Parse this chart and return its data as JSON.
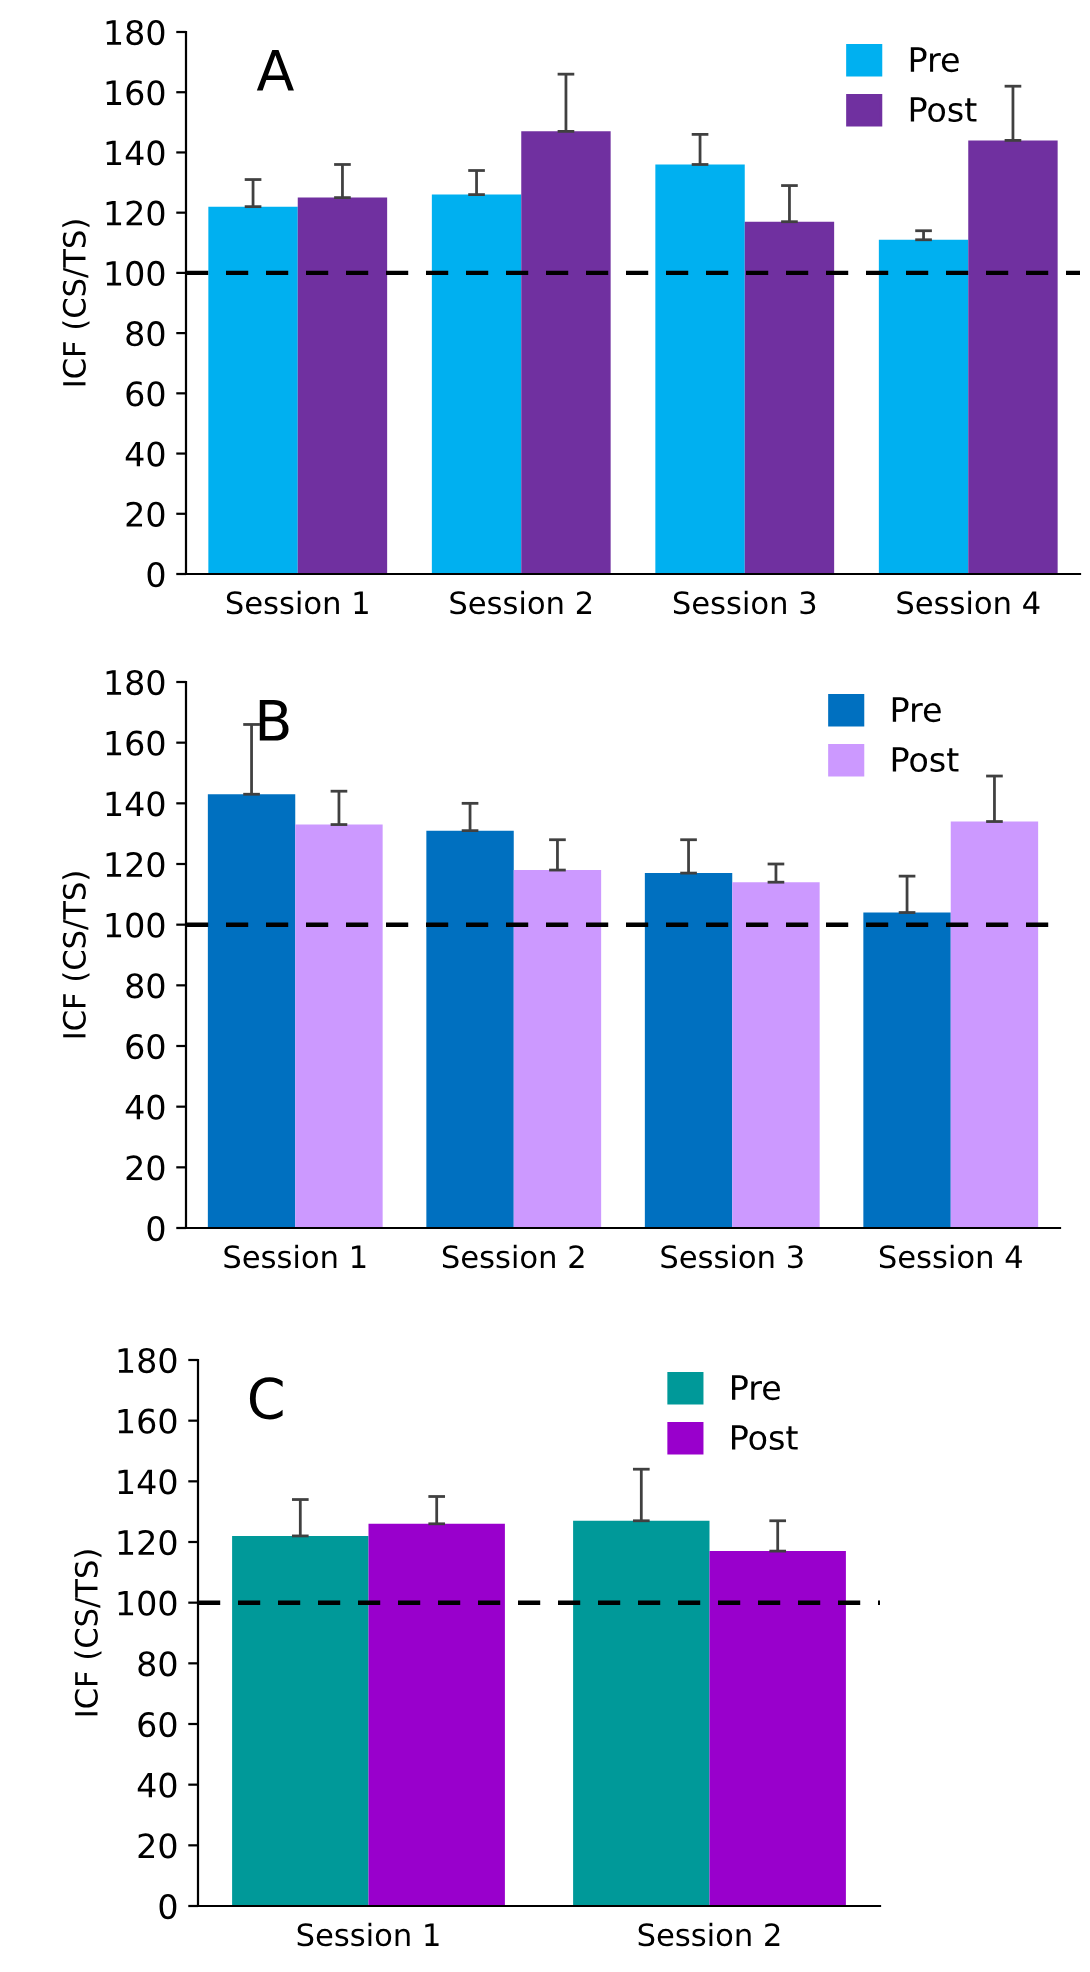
{
  "chart_data": [
    {
      "type": "bar",
      "title": "A",
      "ylabel": "ICF (CS/TS)",
      "categories": [
        "Session 1",
        "Session 2",
        "Session 3",
        "Session 4"
      ],
      "series": [
        {
          "name": "Pre",
          "color": "#00b0f0",
          "values": [
            122,
            126,
            136,
            111
          ],
          "errors": [
            [
              122,
              131
            ],
            [
              126,
              134
            ],
            [
              136,
              146
            ],
            [
              111,
              114
            ]
          ]
        },
        {
          "name": "Post",
          "color": "#7030a0",
          "values": [
            125,
            147,
            117,
            144
          ],
          "errors": [
            [
              125,
              136
            ],
            [
              147,
              166
            ],
            [
              117,
              129
            ],
            [
              144,
              162
            ]
          ]
        }
      ],
      "ylim": [
        0,
        180
      ],
      "yticks": [
        0,
        20,
        40,
        60,
        80,
        100,
        120,
        140,
        160,
        180
      ],
      "ref_lines": [
        {
          "axis": "y",
          "value": 100,
          "line_style": "dashed",
          "color": "#000000"
        }
      ],
      "legend": "top right",
      "grid": false
    },
    {
      "type": "bar",
      "title": "B",
      "ylabel": "ICF (CS/TS)",
      "categories": [
        "Session 1",
        "Session 2",
        "Session 3",
        "Session 4"
      ],
      "series": [
        {
          "name": "Pre",
          "color": "#0070c0",
          "values": [
            143,
            131,
            117,
            104
          ],
          "errors": [
            [
              143,
              166
            ],
            [
              131,
              140
            ],
            [
              117,
              128
            ],
            [
              104,
              116
            ]
          ]
        },
        {
          "name": "Post",
          "color": "#cc99ff",
          "values": [
            133,
            118,
            114,
            134
          ],
          "errors": [
            [
              133,
              144
            ],
            [
              118,
              128
            ],
            [
              114,
              120
            ],
            [
              134,
              149
            ]
          ]
        }
      ],
      "ylim": [
        0,
        180
      ],
      "yticks": [
        0,
        20,
        40,
        60,
        80,
        100,
        120,
        140,
        160,
        180
      ],
      "ref_lines": [
        {
          "axis": "y",
          "value": 100,
          "line_style": "dashed",
          "color": "#000000"
        }
      ],
      "legend": "top right",
      "grid": false
    },
    {
      "type": "bar",
      "title": "C",
      "ylabel": "ICF (CS/TS)",
      "categories": [
        "Session 1",
        "Session 2"
      ],
      "series": [
        {
          "name": "Pre",
          "color": "#009999",
          "values": [
            122,
            127
          ],
          "errors": [
            [
              122,
              134
            ],
            [
              127,
              144
            ]
          ]
        },
        {
          "name": "Post",
          "color": "#9900cc",
          "values": [
            126,
            117
          ],
          "errors": [
            [
              126,
              135
            ],
            [
              117,
              127
            ]
          ]
        }
      ],
      "ylim": [
        0,
        180
      ],
      "yticks": [
        0,
        20,
        40,
        60,
        80,
        100,
        120,
        140,
        160,
        180
      ],
      "ref_lines": [
        {
          "axis": "y",
          "value": 100,
          "line_style": "dashed",
          "color": "#000000"
        }
      ],
      "legend": "top right",
      "grid": false
    }
  ]
}
